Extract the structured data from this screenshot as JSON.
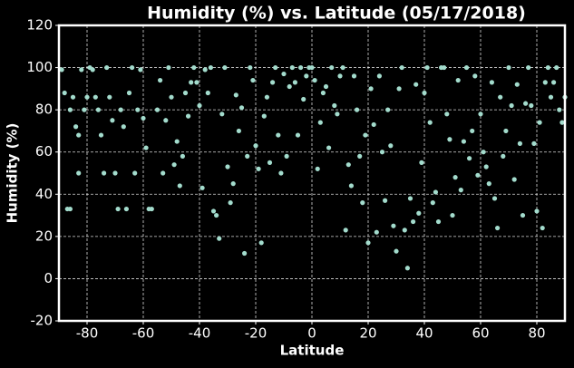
{
  "chart_data": {
    "type": "scatter",
    "title": "Humidity (%) vs. Latitude (05/17/2018)",
    "x_label": "Latitude",
    "y_label": "Humidity (%)",
    "color": "#a3dccd",
    "grid": true,
    "xlim": [
      -90,
      90
    ],
    "ylim": [
      -20,
      120
    ],
    "xticks": [
      -80,
      -60,
      -40,
      -20,
      0,
      20,
      40,
      60,
      80
    ],
    "yticks": [
      -20,
      0,
      20,
      40,
      60,
      80,
      100,
      120
    ],
    "x": [
      -89,
      -88,
      -87,
      -86,
      -86,
      -85,
      -84,
      -83,
      -83,
      -82,
      -81,
      -80,
      -79,
      -78,
      -77,
      -76,
      -75,
      -74,
      -73,
      -72,
      -71,
      -70,
      -69,
      -68,
      -67,
      -66,
      -65,
      -64,
      -63,
      -62,
      -61,
      -60,
      -59,
      -58,
      -57,
      -55,
      -54,
      -53,
      -52,
      -51,
      -50,
      -49,
      -48,
      -47,
      -46,
      -45,
      -44,
      -43,
      -42,
      -41,
      -40,
      -39,
      -38,
      -37,
      -36,
      -35,
      -34,
      -33,
      -32,
      -31,
      -30,
      -29,
      -28,
      -27,
      -26,
      -25,
      -24,
      -23,
      -22,
      -21,
      -20,
      -19,
      -18,
      -17,
      -16,
      -15,
      -14,
      -13,
      -12,
      -11,
      -10,
      -9,
      -8,
      -7,
      -6,
      -5,
      -4,
      -3,
      -2,
      -1,
      0,
      1,
      2,
      3,
      4,
      5,
      6,
      7,
      8,
      9,
      10,
      11,
      12,
      13,
      14,
      15,
      16,
      17,
      18,
      19,
      20,
      21,
      22,
      23,
      24,
      25,
      26,
      27,
      28,
      29,
      30,
      31,
      32,
      33,
      34,
      35,
      36,
      37,
      38,
      39,
      40,
      41,
      42,
      43,
      44,
      45,
      46,
      47,
      48,
      49,
      50,
      51,
      52,
      53,
      54,
      55,
      56,
      57,
      58,
      59,
      60,
      61,
      62,
      63,
      64,
      65,
      66,
      67,
      68,
      69,
      70,
      71,
      72,
      73,
      74,
      75,
      76,
      77,
      78,
      79,
      80,
      81,
      82,
      83,
      84,
      85,
      86,
      87,
      88,
      89,
      90
    ],
    "y": [
      99,
      88,
      33,
      33,
      80,
      86,
      72,
      68,
      50,
      99,
      80,
      86,
      100,
      99,
      86,
      80,
      68,
      50,
      100,
      86,
      75,
      50,
      33,
      80,
      72,
      33,
      88,
      100,
      50,
      80,
      99,
      76,
      62,
      33,
      33,
      80,
      94,
      50,
      75,
      100,
      86,
      54,
      65,
      44,
      58,
      88,
      77,
      93,
      100,
      93,
      82,
      43,
      99,
      88,
      100,
      32,
      30,
      19,
      78,
      100,
      53,
      36,
      45,
      87,
      70,
      81,
      12,
      58,
      100,
      94,
      63,
      52,
      17,
      77,
      86,
      55,
      93,
      100,
      68,
      50,
      97,
      58,
      91,
      100,
      93,
      68,
      100,
      85,
      96,
      100,
      100,
      94,
      52,
      74,
      88,
      91,
      62,
      100,
      82,
      78,
      96,
      100,
      23,
      54,
      44,
      96,
      80,
      58,
      36,
      68,
      17,
      90,
      73,
      22,
      96,
      60,
      37,
      80,
      63,
      25,
      13,
      90,
      100,
      23,
      5,
      38,
      27,
      92,
      31,
      55,
      88,
      100,
      74,
      36,
      41,
      27,
      100,
      100,
      78,
      66,
      30,
      48,
      94,
      42,
      65,
      100,
      57,
      70,
      96,
      49,
      78,
      60,
      53,
      45,
      93,
      38,
      24,
      86,
      58,
      70,
      100,
      82,
      47,
      92,
      64,
      30,
      83,
      100,
      82,
      64,
      32,
      74,
      24,
      93,
      100,
      86,
      93,
      100,
      80,
      74,
      86
    ]
  }
}
